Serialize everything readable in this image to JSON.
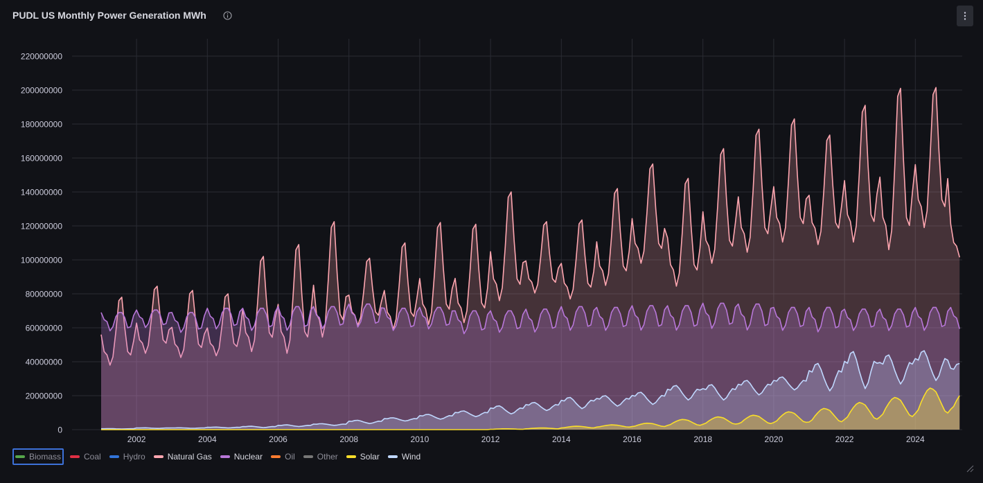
{
  "panel": {
    "title": "PUDL US Monthly Power Generation MWh",
    "icons": [
      "info-icon",
      "kebab-menu-icon",
      "resize-handle-icon"
    ]
  },
  "chart_data": {
    "type": "area",
    "title": "PUDL US Monthly Power Generation MWh",
    "xlabel": "",
    "ylabel": "",
    "xlim": [
      "2001-01",
      "2025-04"
    ],
    "ylim": [
      0,
      230000000
    ],
    "y_ticks": [
      0,
      20000000,
      40000000,
      60000000,
      80000000,
      100000000,
      120000000,
      140000000,
      160000000,
      180000000,
      200000000,
      220000000
    ],
    "x_ticks": [
      "2002",
      "2004",
      "2006",
      "2008",
      "2010",
      "2012",
      "2014",
      "2016",
      "2018",
      "2020",
      "2022",
      "2024"
    ],
    "grid": true,
    "legend_position": "bottom-left",
    "series": [
      {
        "name": "Biomass",
        "color": "#56a64b",
        "hidden": true,
        "values": []
      },
      {
        "name": "Coal",
        "color": "#e02f44",
        "hidden": true,
        "values": []
      },
      {
        "name": "Hydro",
        "color": "#3274d9",
        "hidden": true,
        "values": []
      },
      {
        "name": "Natural Gas",
        "color": "#ffa6b0",
        "hidden": false,
        "annual_peak": [
          78000000,
          84500000,
          82000000,
          80000000,
          102000000,
          109000000,
          122500000,
          101000000,
          110000000,
          122000000,
          121000000,
          140000000,
          122500000,
          123500000,
          142000000,
          156500000,
          148000000,
          165500000,
          177000000,
          183000000,
          173500000,
          191000000,
          201000000,
          201500000,
          145000000
        ],
        "annual_trough": [
          38000000,
          45000000,
          42500000,
          43500000,
          46000000,
          45000000,
          54500000,
          61500000,
          59000000,
          62000000,
          63000000,
          76000000,
          80500000,
          77000000,
          85000000,
          98000000,
          84500000,
          98000000,
          104500000,
          110500000,
          109000000,
          110500000,
          106000000,
          119000000,
          101500000
        ]
      },
      {
        "name": "Nuclear",
        "color": "#b877d9",
        "hidden": false,
        "annual_peak": [
          69000000,
          70500000,
          69000000,
          71500000,
          71500000,
          72500000,
          72500000,
          74000000,
          71500000,
          72000000,
          70000000,
          70000000,
          71000000,
          72500000,
          72000000,
          73000000,
          73000000,
          74500000,
          74000000,
          72000000,
          72000000,
          71000000,
          71000000,
          72000000,
          72000000
        ],
        "annual_trough": [
          57000000,
          59000000,
          56000000,
          58000000,
          57000000,
          57000000,
          58000000,
          59000000,
          57000000,
          58000000,
          55000000,
          56000000,
          56000000,
          57000000,
          57000000,
          57000000,
          57000000,
          58000000,
          57000000,
          57000000,
          56000000,
          57000000,
          57000000,
          57000000,
          58000000
        ]
      },
      {
        "name": "Oil",
        "color": "#ff7c30",
        "hidden": true,
        "values": []
      },
      {
        "name": "Other",
        "color": "#777777",
        "hidden": true,
        "values": []
      },
      {
        "name": "Solar",
        "color": "#fade2a",
        "hidden": false,
        "annual_peak": [
          0,
          0,
          0,
          0,
          0,
          0,
          0,
          0,
          0,
          0,
          0,
          500000,
          1000000,
          2000000,
          2800000,
          3800000,
          6000000,
          7500000,
          8500000,
          10500000,
          12500000,
          16000000,
          19000000,
          24500000,
          23500000
        ],
        "annual_trough": [
          0,
          0,
          0,
          0,
          0,
          0,
          0,
          0,
          0,
          0,
          0,
          200000,
          500000,
          1000000,
          1500000,
          1800000,
          2500000,
          3200000,
          3500000,
          4200000,
          4500000,
          6000000,
          7500000,
          9500000,
          12000000
        ]
      },
      {
        "name": "Wind",
        "color": "#c0d8ff",
        "hidden": false,
        "annual_peak": [
          600000,
          1100000,
          1100000,
          1500000,
          2000000,
          2800000,
          3500000,
          5500000,
          7000000,
          9000000,
          11000000,
          14000000,
          16000000,
          19000000,
          20000000,
          22000000,
          26000000,
          26500000,
          29000000,
          31000000,
          39000000,
          46000000,
          44000000,
          46500000,
          39000000
        ],
        "annual_trough": [
          400000,
          700000,
          800000,
          1000000,
          1200000,
          1800000,
          2500000,
          3500000,
          5000000,
          6000000,
          7500000,
          9000000,
          11000000,
          12000000,
          13500000,
          14500000,
          17000000,
          17000000,
          20000000,
          23000000,
          22000000,
          23000000,
          26000000,
          28000000,
          27500000
        ]
      }
    ]
  },
  "legend": {
    "items": [
      {
        "label": "Biomass",
        "color": "#56a64b",
        "selected": true,
        "active": false
      },
      {
        "label": "Coal",
        "color": "#e02f44",
        "selected": false,
        "active": false
      },
      {
        "label": "Hydro",
        "color": "#3274d9",
        "selected": false,
        "active": false
      },
      {
        "label": "Natural Gas",
        "color": "#ffa6b0",
        "selected": false,
        "active": true
      },
      {
        "label": "Nuclear",
        "color": "#b877d9",
        "selected": false,
        "active": true
      },
      {
        "label": "Oil",
        "color": "#ff7c30",
        "selected": false,
        "active": false
      },
      {
        "label": "Other",
        "color": "#777777",
        "selected": false,
        "active": false
      },
      {
        "label": "Solar",
        "color": "#fade2a",
        "selected": false,
        "active": true
      },
      {
        "label": "Wind",
        "color": "#c0d8ff",
        "selected": false,
        "active": true
      }
    ]
  }
}
